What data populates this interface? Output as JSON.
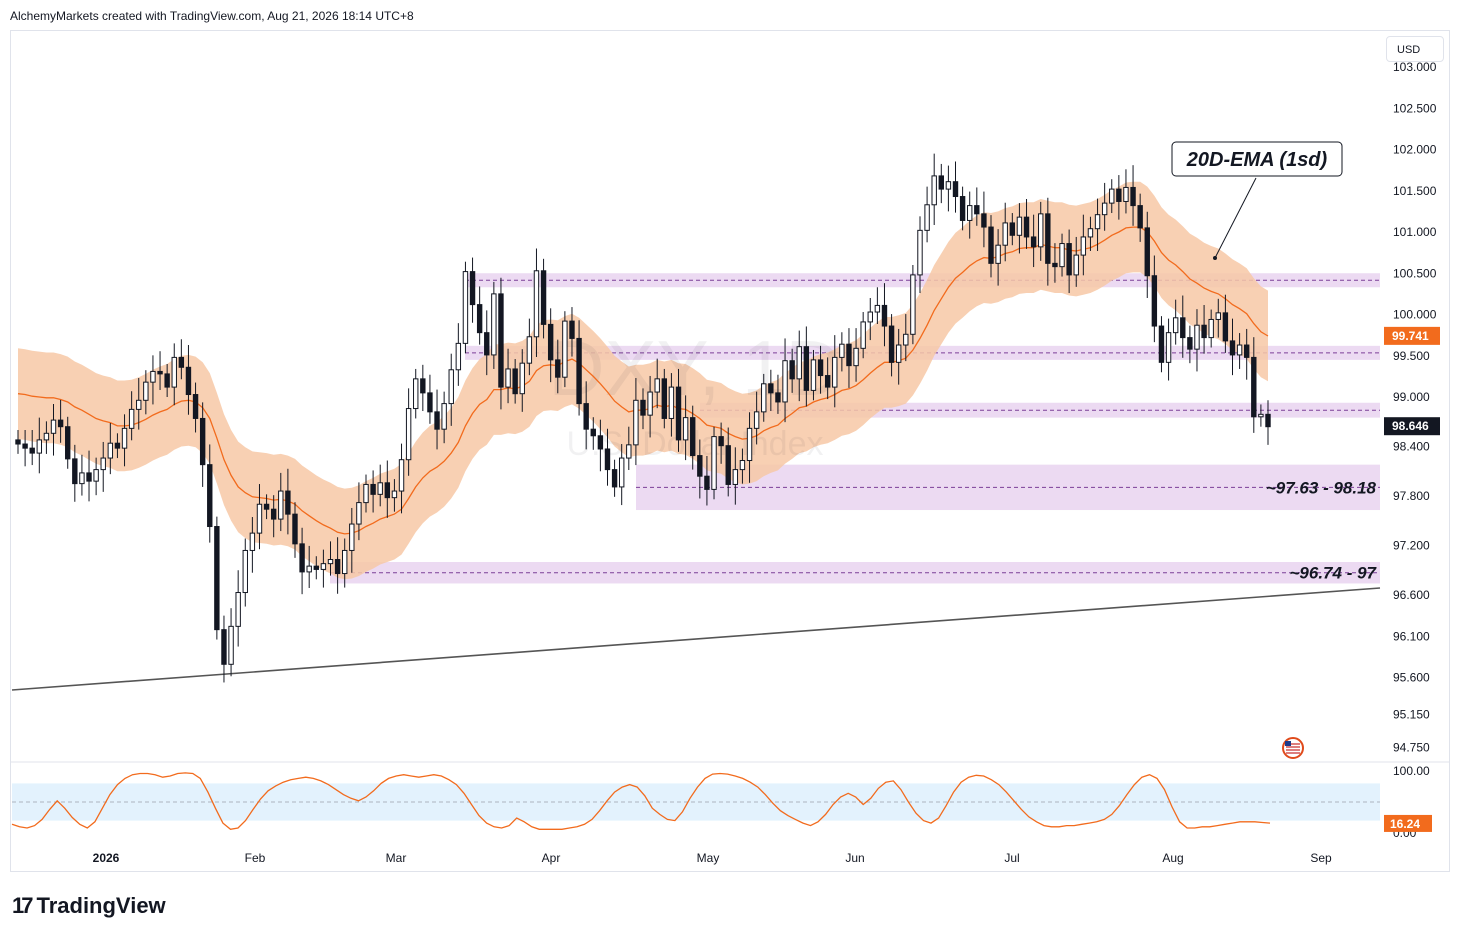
{
  "header": {
    "text": "AlchemyMarkets created with TradingView.com, Aug 21, 2026 18:14 UTC+8"
  },
  "currency_button": {
    "label": "USD"
  },
  "watermark": {
    "symbol": "DXY, 1D",
    "name": "U.S. Dollar Index"
  },
  "annotation": {
    "label": "20D-EMA (1sd)"
  },
  "zones": [
    {
      "low": 100.33,
      "high": 100.5,
      "label": ""
    },
    {
      "low": 99.45,
      "high": 99.62,
      "label": ""
    },
    {
      "low": 98.75,
      "high": 98.93,
      "label": ""
    },
    {
      "low": 97.63,
      "high": 98.18,
      "label": "~97.63 - 98.18"
    },
    {
      "low": 96.74,
      "high": 97.0,
      "label": "~96.74 - 97"
    }
  ],
  "price_labels": {
    "ema": "99.741",
    "last": "98.646"
  },
  "oscillator_label": "16.24",
  "brand": {
    "logo_mark": "17",
    "logo_text": "TradingView"
  },
  "colors": {
    "band": "#f7c8a6",
    "ema": "#f26b1d",
    "zone": "#e6cdee",
    "zone_line": "#7b3f98",
    "oscillator": "#f26b1d",
    "osc_band": "#e3f2fd",
    "candle": "#131722"
  },
  "chart_data": {
    "type": "candlestick",
    "title": "",
    "xlabel": "",
    "ylabel": "",
    "ylim": [
      94.6,
      103.4
    ],
    "y_ticks": [
      "103.000",
      "102.500",
      "102.000",
      "101.500",
      "101.000",
      "100.500",
      "100.000",
      "99.500",
      "99.000",
      "98.400",
      "97.800",
      "97.200",
      "96.600",
      "96.100",
      "95.600",
      "95.150",
      "94.750"
    ],
    "x_ticks": [
      "2026",
      "Feb",
      "Mar",
      "Apr",
      "May",
      "Jun",
      "Jul",
      "Aug",
      "Sep"
    ],
    "close": [
      98.43,
      98.38,
      98.32,
      98.48,
      98.56,
      98.72,
      98.64,
      98.25,
      97.95,
      98.08,
      97.98,
      98.12,
      98.26,
      98.44,
      98.38,
      98.62,
      98.85,
      98.96,
      99.18,
      99.31,
      99.28,
      99.12,
      99.48,
      99.36,
      99.03,
      98.74,
      98.18,
      97.43,
      96.18,
      95.76,
      96.22,
      96.63,
      97.14,
      97.35,
      97.7,
      97.64,
      97.52,
      97.86,
      97.58,
      97.22,
      96.88,
      96.95,
      96.91,
      96.98,
      97.03,
      96.86,
      97.14,
      97.46,
      97.72,
      97.94,
      97.82,
      97.96,
      97.78,
      97.86,
      98.24,
      98.86,
      99.22,
      99.05,
      98.82,
      98.61,
      98.92,
      99.33,
      99.65,
      100.52,
      100.12,
      99.78,
      99.51,
      100.25,
      99.12,
      99.34,
      99.04,
      99.41,
      99.73,
      100.53,
      99.88,
      99.45,
      99.24,
      99.92,
      99.71,
      98.92,
      98.61,
      98.53,
      98.37,
      98.12,
      97.91,
      98.26,
      98.42,
      98.96,
      98.78,
      99.06,
      99.22,
      98.74,
      99.12,
      98.48,
      98.75,
      98.29,
      98.04,
      97.88,
      98.52,
      98.41,
      97.94,
      98.12,
      98.23,
      98.62,
      98.82,
      99.16,
      99.05,
      98.94,
      99.44,
      99.22,
      99.61,
      99.08,
      99.45,
      99.26,
      99.12,
      99.48,
      99.64,
      99.38,
      99.59,
      99.91,
      100.03,
      100.11,
      99.86,
      99.42,
      99.63,
      99.76,
      100.48,
      101.02,
      101.33,
      101.68,
      101.52,
      101.61,
      101.43,
      101.14,
      101.32,
      101.22,
      101.06,
      100.62,
      100.84,
      101.11,
      100.96,
      101.18,
      100.94,
      100.82,
      101.22,
      100.62,
      100.58,
      100.86,
      100.48,
      100.72,
      100.94,
      101.04,
      101.21,
      101.35,
      101.52,
      101.37,
      101.54,
      101.32,
      101.05,
      100.47,
      99.86,
      99.42,
      99.78,
      99.96,
      99.72,
      99.58,
      99.87,
      99.72,
      99.94,
      100.02,
      99.68,
      99.51,
      99.63,
      99.48,
      98.76,
      98.79,
      98.64
    ],
    "ema_20d": [
      99.04,
      99.03,
      99.01,
      99.0,
      98.99,
      98.99,
      98.97,
      98.94,
      98.88,
      98.84,
      98.79,
      98.74,
      98.71,
      98.69,
      98.65,
      98.65,
      98.66,
      98.69,
      98.73,
      98.78,
      98.82,
      98.85,
      98.91,
      98.95,
      98.96,
      98.94,
      98.87,
      98.74,
      98.5,
      98.24,
      98.05,
      97.91,
      97.84,
      97.79,
      97.78,
      97.77,
      97.75,
      97.76,
      97.74,
      97.7,
      97.62,
      97.56,
      97.5,
      97.45,
      97.41,
      97.36,
      97.34,
      97.35,
      97.38,
      97.43,
      97.47,
      97.52,
      97.55,
      97.58,
      97.64,
      97.77,
      97.91,
      98.02,
      98.1,
      98.15,
      98.22,
      98.32,
      98.45,
      98.65,
      98.8,
      98.91,
      98.97,
      99.09,
      99.09,
      99.11,
      99.1,
      99.13,
      99.19,
      99.32,
      99.38,
      99.39,
      99.38,
      99.43,
      99.46,
      99.41,
      99.33,
      99.25,
      99.16,
      99.06,
      98.95,
      98.88,
      98.82,
      98.84,
      98.84,
      98.86,
      98.9,
      98.88,
      98.9,
      98.86,
      98.85,
      98.8,
      98.74,
      98.66,
      98.64,
      98.62,
      98.56,
      98.52,
      98.49,
      98.5,
      98.53,
      98.59,
      98.63,
      98.66,
      98.74,
      98.8,
      98.87,
      98.89,
      98.94,
      98.97,
      98.99,
      99.03,
      99.08,
      99.1,
      99.14,
      99.21,
      99.29,
      99.36,
      99.42,
      99.42,
      99.44,
      99.47,
      99.57,
      99.71,
      99.87,
      100.05,
      100.19,
      100.33,
      100.44,
      100.51,
      100.59,
      100.65,
      100.69,
      100.68,
      100.7,
      100.74,
      100.76,
      100.8,
      100.81,
      100.81,
      100.85,
      100.83,
      100.81,
      100.81,
      100.78,
      100.77,
      100.79,
      100.81,
      100.85,
      100.9,
      100.96,
      101.0,
      101.05,
      101.06,
      101.06,
      101.0,
      100.89,
      100.75,
      100.66,
      100.6,
      100.52,
      100.43,
      100.38,
      100.32,
      100.28,
      100.25,
      100.19,
      100.12,
      100.07,
      100.01,
      99.89,
      99.79,
      99.74
    ],
    "band_width_1sd": 0.55,
    "ema_last": 99.741,
    "last_price": 98.646,
    "oscillator": {
      "ylim": [
        0,
        100
      ],
      "y_ticks": [
        "100.00",
        "0.00"
      ],
      "band": [
        20,
        80
      ],
      "last": 16.24,
      "values": [
        14,
        10,
        8,
        12,
        22,
        38,
        52,
        40,
        25,
        14,
        8,
        18,
        40,
        62,
        78,
        88,
        94,
        96,
        96,
        94,
        90,
        92,
        96,
        97,
        96,
        88,
        66,
        40,
        16,
        6,
        8,
        20,
        38,
        55,
        68,
        76,
        82,
        86,
        88,
        90,
        88,
        84,
        78,
        70,
        62,
        56,
        52,
        58,
        68,
        80,
        88,
        92,
        94,
        92,
        90,
        92,
        94,
        92,
        86,
        78,
        64,
        46,
        28,
        16,
        10,
        8,
        12,
        24,
        18,
        10,
        6,
        6,
        6,
        6,
        8,
        10,
        14,
        22,
        36,
        52,
        66,
        74,
        78,
        74,
        60,
        40,
        30,
        22,
        20,
        34,
        56,
        74,
        88,
        95,
        96,
        95,
        92,
        88,
        82,
        74,
        62,
        48,
        36,
        28,
        22,
        16,
        12,
        18,
        30,
        46,
        58,
        64,
        58,
        46,
        56,
        72,
        82,
        84,
        70,
        50,
        32,
        20,
        16,
        24,
        44,
        66,
        82,
        90,
        93,
        92,
        86,
        78,
        66,
        52,
        38,
        26,
        18,
        12,
        10,
        10,
        12,
        12,
        14,
        16,
        18,
        22,
        30,
        44,
        62,
        78,
        90,
        94,
        88,
        70,
        42,
        18,
        8,
        8,
        10,
        10,
        12,
        14,
        16,
        18,
        18,
        18,
        17,
        16
      ]
    }
  }
}
